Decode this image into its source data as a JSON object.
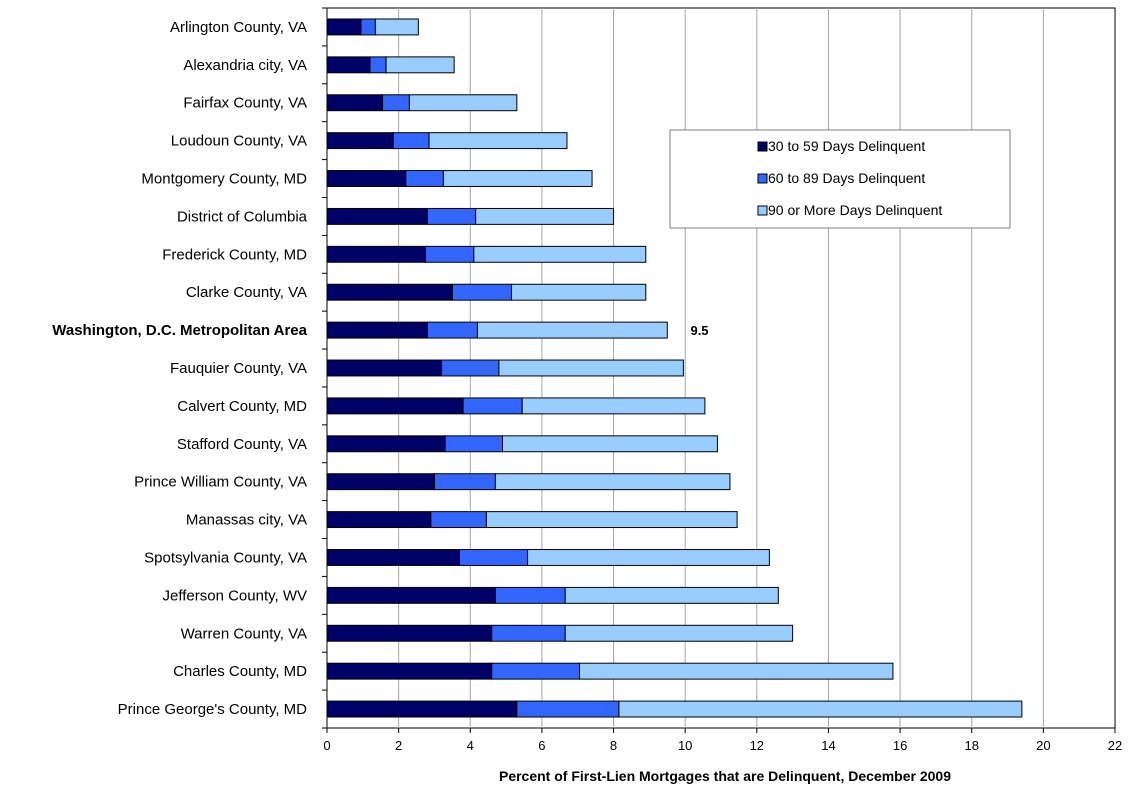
{
  "chart_data": {
    "type": "bar",
    "orientation": "horizontal",
    "stacked": true,
    "categories": [
      "Arlington County, VA",
      "Alexandria city, VA",
      "Fairfax County, VA",
      "Loudoun County, VA",
      "Montgomery County, MD",
      "District of Columbia",
      "Frederick County, MD",
      "Clarke County, VA",
      "Washington, D.C.  Metropolitan Area",
      "Fauquier County, VA",
      "Calvert County, MD",
      "Stafford County, VA",
      "Prince William County, VA",
      "Manassas city, VA",
      "Spotsylvania County, VA",
      "Jefferson County, WV",
      "Warren County, VA",
      "Charles County, MD",
      "Prince George's County, MD"
    ],
    "highlight_category": "Washington, D.C.  Metropolitan Area",
    "series": [
      {
        "name": "30 to 59 Days Delinquent",
        "color": "#000066",
        "values": [
          0.95,
          1.2,
          1.55,
          1.85,
          2.2,
          2.8,
          2.75,
          3.5,
          2.8,
          3.2,
          3.8,
          3.3,
          3.0,
          2.9,
          3.7,
          4.7,
          4.6,
          4.6,
          5.3
        ]
      },
      {
        "name": "60 to 89 Days Delinquent",
        "color": "#3366FF",
        "values": [
          0.4,
          0.45,
          0.75,
          1.0,
          1.05,
          1.35,
          1.35,
          1.65,
          1.4,
          1.6,
          1.65,
          1.6,
          1.7,
          1.55,
          1.9,
          1.95,
          2.05,
          2.45,
          2.85
        ]
      },
      {
        "name": "90 or More Days Delinquent",
        "color": "#99CCFF",
        "values": [
          1.2,
          1.9,
          3.0,
          3.85,
          4.15,
          3.85,
          4.8,
          3.75,
          5.3,
          5.15,
          5.1,
          6.0,
          6.55,
          7.0,
          6.75,
          5.95,
          6.35,
          8.75,
          11.25
        ]
      }
    ],
    "annotations": [
      {
        "category": "Washington, D.C.  Metropolitan Area",
        "x": 10.4,
        "text": "9.5"
      }
    ],
    "xlabel": "Percent of First-Lien Mortgages that are Delinquent, December 2009",
    "ylabel": "",
    "xlim": [
      0,
      22
    ],
    "xticks": [
      0,
      2,
      4,
      6,
      8,
      10,
      12,
      14,
      16,
      18,
      20,
      22
    ],
    "grid": "vertical",
    "legend_position": "top-right"
  }
}
